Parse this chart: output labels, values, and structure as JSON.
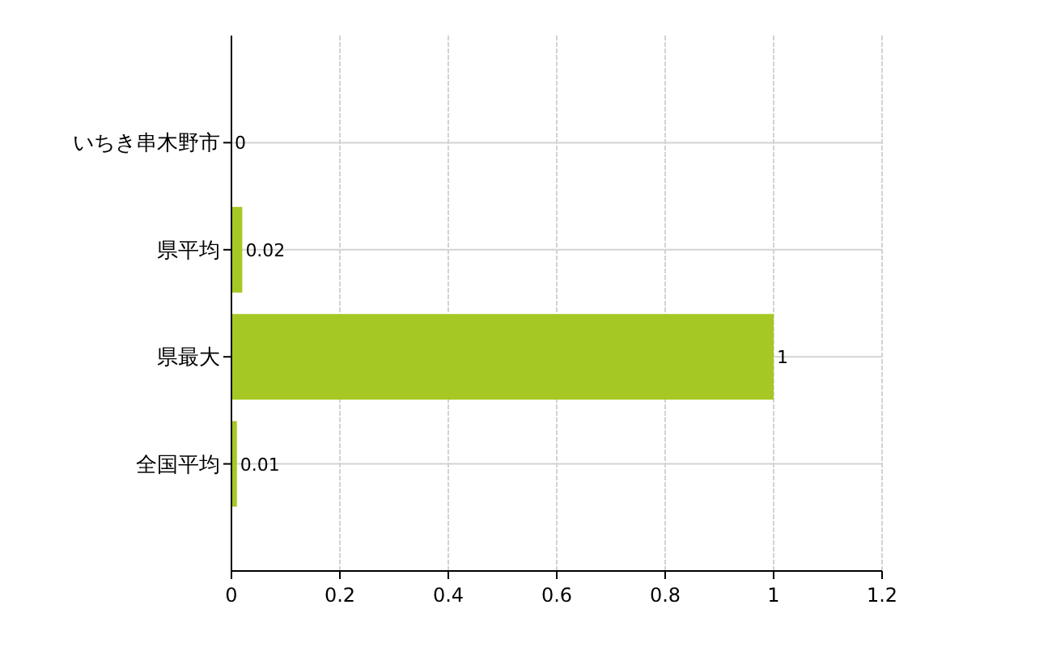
{
  "chart_data": {
    "type": "bar",
    "orientation": "horizontal",
    "categories": [
      "いちき串木野市",
      "県平均",
      "県最大",
      "全国平均"
    ],
    "values": [
      0,
      0.02,
      1,
      0.01
    ],
    "color": "#a6c824",
    "xlim": [
      0,
      1.2
    ],
    "xticks": [
      0,
      0.2,
      0.4,
      0.6,
      0.8,
      1,
      1.2
    ],
    "grid": true,
    "data_labels": true
  }
}
